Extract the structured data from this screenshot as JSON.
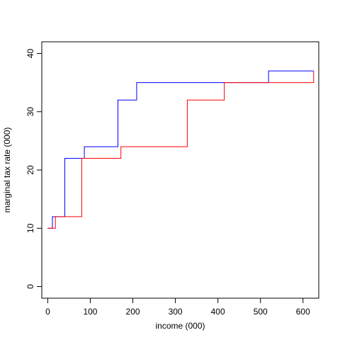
{
  "chart_data": {
    "type": "line",
    "step": true,
    "title": "",
    "xlabel": "income (000)",
    "ylabel": "marginal tax rate (000)",
    "xlim": [
      -14,
      637
    ],
    "ylim": [
      -2,
      42
    ],
    "x_ticks": [
      0,
      100,
      200,
      300,
      400,
      500,
      600
    ],
    "y_ticks": [
      0,
      10,
      20,
      30,
      40
    ],
    "grid": false,
    "legend": "none",
    "series": [
      {
        "color": "#0000FF",
        "x": [
          0,
          11,
          40,
          86,
          165,
          209,
          519,
          625
        ],
        "y": [
          10,
          12,
          22,
          24,
          32,
          35,
          37,
          37
        ]
      },
      {
        "color": "#FF0000",
        "x": [
          0,
          18,
          80,
          172,
          328,
          415,
          625
        ],
        "y": [
          10,
          12,
          22,
          24,
          32,
          35,
          37
        ]
      }
    ]
  }
}
